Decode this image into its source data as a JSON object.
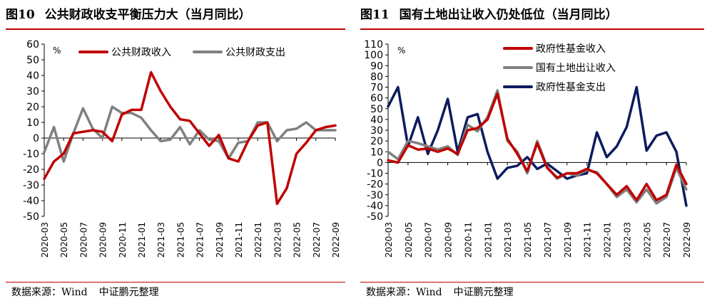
{
  "figures": [
    {
      "number": "图10",
      "title": "公共财政收支平衡压力大（当月同比）",
      "source_label": "数据来源：Wind",
      "source_org": "中证鹏元整理",
      "chart_data": {
        "type": "line",
        "unit": "%",
        "ylim": [
          -50,
          60
        ],
        "yticks": [
          60,
          50,
          40,
          30,
          20,
          10,
          0,
          -10,
          -20,
          -30,
          -40,
          -50
        ],
        "x": [
          "2020-03",
          "2020-04",
          "2020-05",
          "2020-06",
          "2020-07",
          "2020-08",
          "2020-09",
          "2020-10",
          "2020-11",
          "2020-12",
          "2021-01",
          "2021-02",
          "2021-03",
          "2021-04",
          "2021-05",
          "2021-06",
          "2021-07",
          "2021-08",
          "2021-09",
          "2021-10",
          "2021-11",
          "2021-12",
          "2022-01",
          "2022-02",
          "2022-03",
          "2022-04",
          "2022-05",
          "2022-06",
          "2022-07",
          "2022-08",
          "2022-09"
        ],
        "xticks": [
          "2020-03",
          "2020-05",
          "2020-07",
          "2020-09",
          "2020-11",
          "2021-01",
          "2021-03",
          "2021-05",
          "2021-07",
          "2021-09",
          "2021-11",
          "2022-01",
          "2022-03",
          "2022-05",
          "2022-07",
          "2022-09"
        ],
        "grid": false,
        "legend": "top",
        "series": [
          {
            "name": "公共财政收入",
            "color": "#c00000",
            "values": [
              -26,
              -15,
              -10,
              3,
              4,
              5,
              4,
              -2,
              15,
              18,
              18,
              42,
              30,
              20,
              12,
              11,
              3,
              -5,
              2,
              -13,
              -15,
              -2,
              8,
              10,
              -42,
              -32,
              -10,
              -3,
              5,
              7,
              8
            ]
          },
          {
            "name": "公共财政支出",
            "color": "#808080",
            "values": [
              -9,
              7,
              -15,
              3,
              19,
              6,
              0,
              20,
              16,
              16,
              13,
              5,
              -2,
              -1,
              7,
              -4,
              5,
              -1,
              -2,
              -13,
              -3,
              -2,
              10,
              10,
              -2,
              5,
              6,
              10,
              5,
              5,
              5
            ]
          }
        ]
      }
    },
    {
      "number": "图11",
      "title": "国有土地出让收入仍处低位（当月同比）",
      "source_label": "数据来源：Wind",
      "source_org": "中证鹏元整理",
      "chart_data": {
        "type": "line",
        "unit": "%",
        "ylim": [
          -50,
          110
        ],
        "yticks": [
          110,
          100,
          90,
          80,
          70,
          60,
          50,
          40,
          30,
          20,
          10,
          0,
          -10,
          -20,
          -30,
          -40,
          -50
        ],
        "x": [
          "2020-03",
          "2020-04",
          "2020-05",
          "2020-06",
          "2020-07",
          "2020-08",
          "2020-09",
          "2020-10",
          "2020-11",
          "2020-12",
          "2021-01",
          "2021-02",
          "2021-03",
          "2021-04",
          "2021-05",
          "2021-06",
          "2021-07",
          "2021-08",
          "2021-09",
          "2021-10",
          "2021-11",
          "2021-12",
          "2022-01",
          "2022-02",
          "2022-03",
          "2022-04",
          "2022-05",
          "2022-06",
          "2022-07",
          "2022-08",
          "2022-09"
        ],
        "xticks": [
          "2020-03",
          "2020-05",
          "2020-07",
          "2020-09",
          "2020-11",
          "2021-01",
          "2021-03",
          "2021-05",
          "2021-07",
          "2021-09",
          "2021-11",
          "2022-01",
          "2022-03",
          "2022-05",
          "2022-07",
          "2022-09"
        ],
        "grid": false,
        "legend": "top",
        "series": [
          {
            "name": "政府性基金收入",
            "color": "#c00000",
            "values": [
              2,
              0,
              16,
              12,
              13,
              10,
              13,
              8,
              30,
              32,
              40,
              64,
              22,
              8,
              -8,
              18,
              -5,
              -14,
              -10,
              -10,
              -6,
              -10,
              -20,
              -30,
              -22,
              -35,
              -20,
              -35,
              -30,
              -2,
              -20
            ]
          },
          {
            "name": "国有土地出让收入",
            "color": "#808080",
            "values": [
              10,
              3,
              20,
              18,
              15,
              12,
              15,
              7,
              35,
              29,
              42,
              67,
              20,
              10,
              -10,
              20,
              -4,
              -15,
              -10,
              -12,
              -7,
              -9,
              -20,
              -32,
              -25,
              -37,
              -25,
              -38,
              -32,
              -5,
              -25
            ]
          },
          {
            "name": "政府性基金支出",
            "color": "#0d1b5e",
            "values": [
              52,
              70,
              15,
              42,
              8,
              30,
              59,
              10,
              42,
              45,
              10,
              -15,
              -5,
              -3,
              5,
              -6,
              -1,
              -8,
              -15,
              -12,
              -10,
              28,
              5,
              15,
              33,
              70,
              11,
              25,
              28,
              10,
              -40
            ]
          }
        ]
      }
    }
  ]
}
